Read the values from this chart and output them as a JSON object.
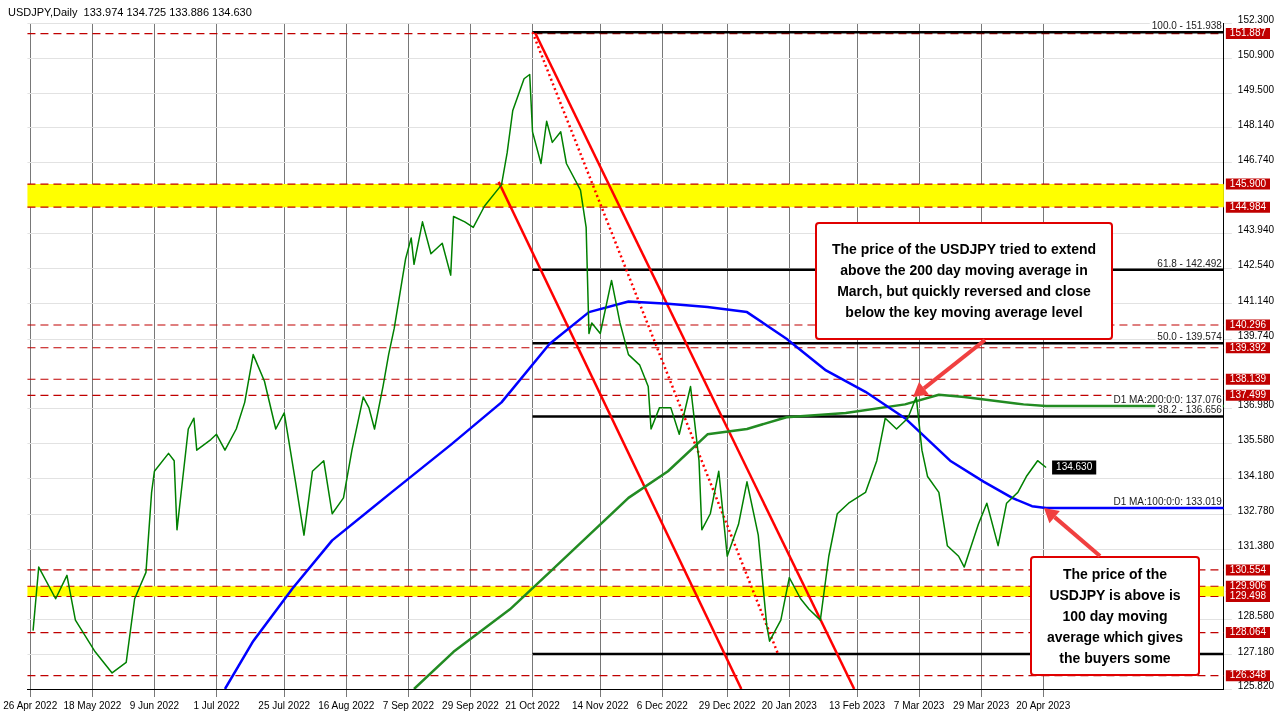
{
  "chart_data": {
    "type": "line",
    "title": "USDJPY,Daily  133.974 134.725 133.886 134.630",
    "xlim": [
      "2022-04-25",
      "2023-06-23"
    ],
    "xticks": [
      {
        "value": "2022-04-26",
        "label": "26 Apr 2022"
      },
      {
        "value": "2022-05-18",
        "label": "18 May 2022"
      },
      {
        "value": "2022-06-09",
        "label": "9 Jun 2022"
      },
      {
        "value": "2022-07-01",
        "label": "1 Jul 2022"
      },
      {
        "value": "2022-07-25",
        "label": "25 Jul 2022"
      },
      {
        "value": "2022-08-16",
        "label": "16 Aug 2022"
      },
      {
        "value": "2022-09-07",
        "label": "7 Sep 2022"
      },
      {
        "value": "2022-09-29",
        "label": "29 Sep 2022"
      },
      {
        "value": "2022-10-21",
        "label": "21 Oct 2022"
      },
      {
        "value": "2022-11-14",
        "label": "14 Nov 2022"
      },
      {
        "value": "2022-12-06",
        "label": "6 Dec 2022"
      },
      {
        "value": "2022-12-29",
        "label": "29 Dec 2022"
      },
      {
        "value": "2023-01-20",
        "label": "20 Jan 2023"
      },
      {
        "value": "2023-02-13",
        "label": "13 Feb 2023"
      },
      {
        "value": "2023-03-07",
        "label": "7 Mar 2023"
      },
      {
        "value": "2023-03-29",
        "label": "29 Mar 2023"
      },
      {
        "value": "2023-04-20",
        "label": "20 Apr 2023"
      }
    ],
    "ylim": [
      125.82,
      152.3
    ],
    "yticks": [
      {
        "value": 125.82,
        "label": "125.820"
      },
      {
        "value": 127.18,
        "label": "127.180"
      },
      {
        "value": 128.58,
        "label": "128.580"
      },
      {
        "value": 131.38,
        "label": "131.380"
      },
      {
        "value": 132.78,
        "label": "132.780"
      },
      {
        "value": 134.18,
        "label": "134.180"
      },
      {
        "value": 135.58,
        "label": "135.580"
      },
      {
        "value": 136.98,
        "label": "136.980"
      },
      {
        "value": 139.74,
        "label": "139.740"
      },
      {
        "value": 141.14,
        "label": "141.140"
      },
      {
        "value": 142.54,
        "label": "142.540"
      },
      {
        "value": 143.94,
        "label": "143.940"
      },
      {
        "value": 146.74,
        "label": "146.740"
      },
      {
        "value": 148.14,
        "label": "148.140"
      },
      {
        "value": 149.5,
        "label": "149.500"
      },
      {
        "value": 150.9,
        "label": "150.900"
      },
      {
        "value": 152.3,
        "label": "152.300"
      }
    ],
    "grid": true,
    "legend": false,
    "marker": "none",
    "series": [
      {
        "color": "#008000",
        "x": [
          "2022-04-27",
          "2022-04-29",
          "2022-05-05",
          "2022-05-09",
          "2022-05-12",
          "2022-05-19",
          "2022-05-25",
          "2022-05-30",
          "2022-06-02",
          "2022-06-06",
          "2022-06-08",
          "2022-06-09",
          "2022-06-14",
          "2022-06-16",
          "2022-06-17",
          "2022-06-21",
          "2022-06-23",
          "2022-06-24",
          "2022-06-29",
          "2022-07-01",
          "2022-07-04",
          "2022-07-08",
          "2022-07-11",
          "2022-07-14",
          "2022-07-18",
          "2022-07-22",
          "2022-07-25",
          "2022-07-29",
          "2022-08-01",
          "2022-08-04",
          "2022-08-08",
          "2022-08-11",
          "2022-08-15",
          "2022-08-18",
          "2022-08-22",
          "2022-08-24",
          "2022-08-26",
          "2022-08-29",
          "2022-08-31",
          "2022-09-02",
          "2022-09-06",
          "2022-09-08",
          "2022-09-09",
          "2022-09-12",
          "2022-09-15",
          "2022-09-19",
          "2022-09-22",
          "2022-09-23",
          "2022-09-27",
          "2022-09-30",
          "2022-10-04",
          "2022-10-10",
          "2022-10-12",
          "2022-10-14",
          "2022-10-18",
          "2022-10-20",
          "2022-10-21",
          "2022-10-24",
          "2022-10-26",
          "2022-10-28",
          "2022-10-31",
          "2022-11-02",
          "2022-11-07",
          "2022-11-09",
          "2022-11-10",
          "2022-11-11",
          "2022-11-14",
          "2022-11-18",
          "2022-11-21",
          "2022-11-24",
          "2022-11-28",
          "2022-12-01",
          "2022-12-02",
          "2022-12-05",
          "2022-12-09",
          "2022-12-12",
          "2022-12-16",
          "2022-12-19",
          "2022-12-20",
          "2022-12-23",
          "2022-12-26",
          "2022-12-29",
          "2023-01-02",
          "2023-01-05",
          "2023-01-09",
          "2023-01-12",
          "2023-01-13",
          "2023-01-17",
          "2023-01-20",
          "2023-01-24",
          "2023-01-27",
          "2023-01-31",
          "2023-02-03",
          "2023-02-06",
          "2023-02-10",
          "2023-02-16",
          "2023-02-20",
          "2023-02-23",
          "2023-02-27",
          "2023-03-03",
          "2023-03-06",
          "2023-03-08",
          "2023-03-10",
          "2023-03-14",
          "2023-03-17",
          "2023-03-21",
          "2023-03-23",
          "2023-03-28",
          "2023-03-31",
          "2023-04-04",
          "2023-04-07",
          "2023-04-11",
          "2023-04-14",
          "2023-04-18",
          "2023-04-21"
        ],
        "values": [
          128.14,
          130.67,
          129.41,
          130.34,
          128.56,
          127.3,
          126.46,
          126.88,
          129.41,
          130.46,
          133.64,
          134.48,
          135.19,
          134.9,
          132.15,
          136.16,
          136.59,
          135.32,
          135.74,
          135.95,
          135.32,
          136.16,
          137.22,
          139.12,
          138.06,
          136.16,
          136.8,
          134.06,
          131.94,
          134.48,
          134.9,
          132.79,
          133.42,
          135.32,
          137.43,
          137.01,
          136.16,
          137.85,
          139.12,
          140.17,
          142.92,
          143.76,
          142.71,
          144.4,
          143.13,
          143.55,
          142.28,
          144.61,
          144.4,
          144.18,
          145.03,
          145.87,
          147.14,
          148.83,
          150.09,
          150.26,
          147.98,
          146.72,
          148.4,
          147.56,
          147.98,
          146.72,
          145.66,
          144.18,
          139.96,
          140.38,
          139.96,
          142.07,
          140.38,
          139.12,
          138.7,
          137.85,
          136.16,
          137.01,
          137.01,
          135.95,
          137.85,
          134.9,
          132.15,
          132.79,
          134.48,
          131.1,
          132.37,
          134.06,
          131.94,
          128.35,
          127.72,
          128.56,
          130.25,
          129.41,
          128.99,
          128.56,
          131.1,
          132.79,
          133.21,
          133.64,
          134.9,
          136.59,
          136.16,
          136.59,
          137.43,
          135.32,
          134.27,
          133.64,
          131.52,
          131.1,
          130.67,
          132.37,
          133.21,
          131.52,
          133.21,
          133.64,
          134.27,
          134.9,
          134.63
        ],
        "value_labels": [
          null,
          null,
          null,
          null,
          null,
          null,
          null,
          null,
          null,
          null,
          null,
          null,
          null,
          null,
          null,
          null,
          null,
          null,
          null,
          null,
          null,
          null,
          null,
          null,
          null,
          null,
          null,
          null,
          null,
          null,
          null,
          null,
          null,
          null,
          null,
          null,
          null,
          null,
          null,
          null,
          null,
          null,
          null,
          null,
          null,
          null,
          null,
          null,
          null,
          null,
          null,
          null,
          null,
          null,
          null,
          null,
          null,
          null,
          null,
          null,
          null,
          null,
          null,
          null,
          null,
          null,
          null,
          null,
          null,
          null,
          null,
          null,
          null,
          null,
          null,
          null,
          null,
          null,
          null,
          null,
          null,
          null,
          null,
          null,
          null,
          null,
          null,
          null,
          null,
          null,
          null,
          null,
          null,
          null,
          null,
          null,
          null,
          null,
          null,
          null,
          null,
          null,
          null,
          null,
          null,
          null,
          null,
          null,
          null,
          null,
          null,
          null,
          null,
          null,
          "134.630"
        ]
      },
      {
        "color": "#0000ff",
        "x": [
          "2022-07-04",
          "2022-07-14",
          "2022-07-28",
          "2022-08-11",
          "2022-09-01",
          "2022-09-22",
          "2022-10-10",
          "2022-10-27",
          "2022-11-10",
          "2022-11-24",
          "2022-12-08",
          "2022-12-22",
          "2023-01-05",
          "2023-01-19",
          "2023-02-02",
          "2023-02-16",
          "2023-03-02",
          "2023-03-18",
          "2023-03-30",
          "2023-04-09",
          "2023-04-16",
          "2023-04-21",
          "2023-06-23"
        ],
        "values": [
          125.82,
          127.72,
          129.83,
          131.73,
          133.64,
          135.53,
          137.22,
          139.54,
          140.81,
          141.23,
          141.14,
          141.01,
          140.81,
          139.75,
          138.49,
          137.64,
          136.59,
          134.9,
          134.06,
          133.42,
          133.09,
          133.019,
          133.019
        ]
      },
      {
        "color": "#228b22",
        "x": [
          "2022-09-09",
          "2022-09-23",
          "2022-10-13",
          "2022-10-27",
          "2022-11-10",
          "2022-11-24",
          "2022-12-08",
          "2022-12-22",
          "2023-01-05",
          "2023-01-19",
          "2023-02-09",
          "2023-03-02",
          "2023-03-14",
          "2023-03-23",
          "2023-04-13",
          "2023-04-21",
          "2023-06-23"
        ],
        "values": [
          125.82,
          127.3,
          128.99,
          130.46,
          131.94,
          133.42,
          134.48,
          135.95,
          136.16,
          136.63,
          136.8,
          137.14,
          137.52,
          137.43,
          137.14,
          137.076,
          137.076
        ]
      },
      {
        "color": "#ff0000",
        "x": [
          "2022-10-09",
          "2023-01-03"
        ],
        "values": [
          145.99,
          125.82
        ]
      },
      {
        "color": "#ff0000",
        "x": [
          "2022-10-22",
          "2023-02-12"
        ],
        "values": [
          151.9,
          125.82
        ]
      },
      {
        "color": "#ff0000",
        "line_style": "dotted",
        "x": [
          "2022-10-21",
          "2023-01-16"
        ],
        "values": [
          151.938,
          127.21
        ]
      },
      {
        "color": "#000000",
        "x": [
          "2022-10-21",
          "2023-06-23"
        ],
        "values": [
          151.938,
          151.938
        ]
      },
      {
        "color": "#000000",
        "x": [
          "2022-10-21",
          "2023-06-23"
        ],
        "values": [
          142.492,
          142.492
        ]
      },
      {
        "color": "#000000",
        "x": [
          "2022-10-21",
          "2023-06-23"
        ],
        "values": [
          139.574,
          139.574
        ]
      },
      {
        "color": "#000000",
        "x": [
          "2022-10-21",
          "2023-06-23"
        ],
        "values": [
          136.656,
          136.656
        ]
      },
      {
        "color": "#000000",
        "x": [
          "2022-10-21",
          "2023-06-23"
        ],
        "values": [
          127.21,
          127.21
        ]
      }
    ],
    "bands": [
      {
        "axis": "y",
        "from": 144.984,
        "to": 145.9,
        "color": "#ffff00"
      },
      {
        "axis": "y",
        "from": 129.498,
        "to": 129.906,
        "color": "#ffff00"
      }
    ],
    "ref_lines": [
      {
        "axis": "y",
        "value": 151.887,
        "label": "151.887",
        "color": "#c00000",
        "line_style": "dashed"
      },
      {
        "axis": "y",
        "value": 145.9,
        "label": "145.900",
        "color": "#c00000",
        "line_style": "dashed"
      },
      {
        "axis": "y",
        "value": 144.984,
        "label": "144.984",
        "color": "#c00000",
        "line_style": "dashed"
      },
      {
        "axis": "y",
        "value": 140.296,
        "label": "140.296",
        "color": "#c00000",
        "line_style": "dashed"
      },
      {
        "axis": "y",
        "value": 139.392,
        "label": "139.392",
        "color": "#c00000",
        "line_style": "dashed"
      },
      {
        "axis": "y",
        "value": 138.139,
        "label": "138.139",
        "color": "#c00000",
        "line_style": "dashed"
      },
      {
        "axis": "y",
        "value": 137.499,
        "label": "137.499",
        "color": "#c00000",
        "line_style": "dashed"
      },
      {
        "axis": "y",
        "value": 130.554,
        "label": "130.554",
        "color": "#c00000",
        "line_style": "dashed"
      },
      {
        "axis": "y",
        "value": 129.906,
        "label": "129.906",
        "color": "#c00000",
        "line_style": "dashed"
      },
      {
        "axis": "y",
        "value": 129.498,
        "label": "129.498",
        "color": "#c00000",
        "line_style": "dashed"
      },
      {
        "axis": "y",
        "value": 128.064,
        "label": "128.064",
        "color": "#c00000",
        "line_style": "dashed"
      },
      {
        "axis": "y",
        "value": 126.348,
        "label": "126.348",
        "color": "#c00000",
        "line_style": "dashed"
      }
    ],
    "annotations": [
      "The price of the USDJPY tried to extend above the 200 day moving average in March, but quickly reversed and close below the key moving average level",
      "The price of the USDJPY is above is 100 day moving average which gives the buyers some",
      {
        "text": "100.0 - 151.938",
        "x": "2023-06-23",
        "y": 151.938
      },
      {
        "text": "61.8 - 142.492",
        "x": "2023-06-23",
        "y": 142.492
      },
      {
        "text": "50.0 - 139.574",
        "x": "2023-06-23",
        "y": 139.574
      },
      {
        "text": "38.2 - 136.656",
        "x": "2023-06-23",
        "y": 136.656
      },
      {
        "text": "D1 MA:200:0:0: 137.076",
        "x": "2023-06-23",
        "y": 137.076
      },
      {
        "text": "D1 MA:100:0:0: 133.019",
        "x": "2023-06-23",
        "y": 133.019
      }
    ]
  }
}
